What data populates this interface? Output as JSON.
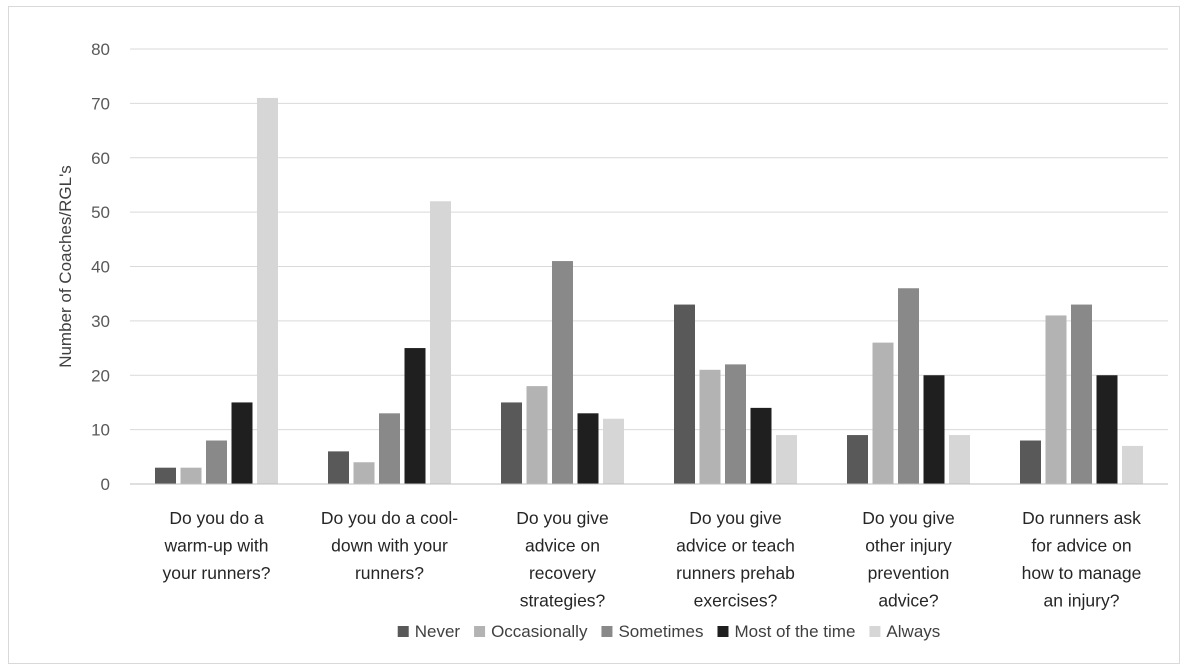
{
  "chart_data": {
    "type": "bar",
    "ylabel": "Number of Coaches/RGL's",
    "ylim": [
      0,
      80
    ],
    "yticks": [
      0,
      10,
      20,
      30,
      40,
      50,
      60,
      70,
      80
    ],
    "grid": true,
    "legend_position": "bottom",
    "categories": [
      [
        "Do you do a",
        "warm-up with",
        "your runners?"
      ],
      [
        "Do you do a cool-",
        "down with your",
        "runners?"
      ],
      [
        "Do you give",
        "advice on",
        "recovery",
        "strategies?"
      ],
      [
        "Do you give",
        "advice or teach",
        "runners prehab",
        "exercises?"
      ],
      [
        "Do you give",
        "other injury",
        "prevention",
        "advice?"
      ],
      [
        "Do runners ask",
        "for advice on",
        "how to manage",
        "an injury?"
      ]
    ],
    "series": [
      {
        "name": "Never",
        "color": "#595959",
        "values": [
          3,
          6,
          15,
          33,
          9,
          8
        ]
      },
      {
        "name": "Occasionally",
        "color": "#b3b3b3",
        "values": [
          3,
          4,
          18,
          21,
          26,
          31
        ]
      },
      {
        "name": "Sometimes",
        "color": "#898989",
        "values": [
          8,
          13,
          41,
          22,
          36,
          33
        ]
      },
      {
        "name": "Most of the time",
        "color": "#1f1f1f",
        "values": [
          15,
          25,
          13,
          14,
          20,
          20
        ]
      },
      {
        "name": "Always",
        "color": "#d6d6d6",
        "values": [
          71,
          52,
          12,
          9,
          9,
          7
        ]
      }
    ]
  }
}
